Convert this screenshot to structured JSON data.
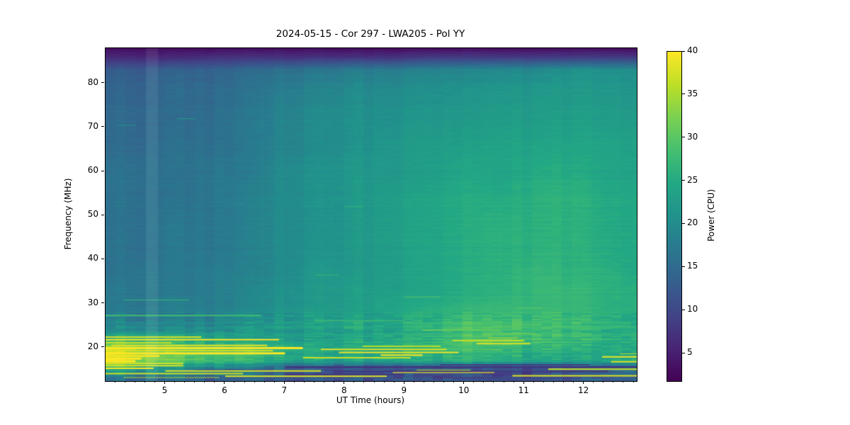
{
  "figure": {
    "title": "2024-05-15 - Cor 297 - LWA205 - Pol YY",
    "background": "#ffffff"
  },
  "axes": {
    "xlabel": "UT Time (hours)",
    "ylabel": "Frequency (MHz)",
    "x_major_ticks": [
      5,
      6,
      7,
      8,
      9,
      10,
      11,
      12
    ],
    "x_minor_per_major": 6,
    "y_major_ticks": [
      20,
      30,
      40,
      50,
      60,
      70,
      80
    ]
  },
  "colorbar": {
    "label": "Power (CPU)",
    "ticks": [
      5,
      10,
      15,
      20,
      25,
      30,
      35,
      40
    ],
    "vmin": 1.8,
    "vmax": 40
  },
  "chart_data": {
    "type": "heatmap",
    "title": "2024-05-15 - Cor 297 - LWA205 - Pol YY",
    "xlabel": "UT Time (hours)",
    "ylabel": "Frequency (MHz)",
    "value_label": "Power (CPU)",
    "x_range": [
      4.0,
      12.88
    ],
    "y_range": [
      12.4,
      88.0
    ],
    "value_range": [
      1.8,
      40
    ],
    "colormap": "viridis",
    "colormap_stops": [
      "#440154",
      "#482475",
      "#414487",
      "#355f8d",
      "#2a788e",
      "#21918c",
      "#22a884",
      "#44bf70",
      "#7ad151",
      "#bddf26",
      "#fde725"
    ],
    "grid": {
      "times": [
        4.0,
        4.6,
        5.2,
        5.8,
        6.4,
        7.0,
        7.6,
        8.2,
        8.8,
        9.4,
        10.0,
        10.6,
        11.2,
        11.8,
        12.4,
        12.88
      ],
      "freqs": [
        88,
        86,
        83,
        78,
        72,
        66,
        60,
        54,
        48,
        42,
        37,
        33,
        30,
        27,
        24.5,
        22,
        19.5,
        17,
        15.5,
        14,
        13
      ],
      "values": [
        [
          3,
          3,
          3,
          3,
          3,
          3,
          3,
          3,
          3,
          3,
          3,
          3,
          3,
          3,
          3,
          3
        ],
        [
          6,
          6,
          6,
          7,
          7,
          7,
          7,
          7,
          7,
          8,
          8,
          8,
          8,
          8,
          8,
          8
        ],
        [
          13,
          13,
          14,
          14,
          15,
          16,
          17,
          18,
          18,
          19,
          19,
          20,
          20,
          21,
          21,
          21
        ],
        [
          14,
          14,
          15,
          15,
          16,
          18,
          19,
          20,
          20,
          21,
          21,
          22,
          22,
          22,
          22,
          22
        ],
        [
          15,
          15,
          15,
          16,
          17,
          19,
          20,
          21,
          21,
          22,
          22,
          23,
          23,
          23,
          23,
          23
        ],
        [
          15,
          15,
          16,
          16,
          17,
          19,
          20,
          21,
          22,
          23,
          23,
          24,
          24,
          24,
          24,
          24
        ],
        [
          16,
          16,
          16,
          17,
          17,
          20,
          21,
          22,
          22,
          23,
          24,
          24,
          25,
          25,
          24,
          24
        ],
        [
          16,
          16,
          16,
          17,
          18,
          20,
          21,
          22,
          23,
          24,
          25,
          25,
          26,
          26,
          25,
          25
        ],
        [
          16,
          16,
          17,
          17,
          18,
          20,
          21,
          22,
          23,
          24,
          25,
          26,
          26,
          26,
          25,
          25
        ],
        [
          16,
          16,
          17,
          17,
          18,
          20,
          21,
          22,
          23,
          24,
          25,
          26,
          26,
          26,
          25,
          25
        ],
        [
          16,
          17,
          17,
          18,
          18,
          20,
          22,
          22,
          23,
          24,
          25,
          26,
          27,
          26,
          26,
          25
        ],
        [
          17,
          17,
          17,
          18,
          19,
          21,
          22,
          23,
          23,
          24,
          25,
          26,
          27,
          27,
          26,
          26
        ],
        [
          17,
          17,
          18,
          18,
          19,
          21,
          22,
          23,
          24,
          25,
          26,
          27,
          27,
          27,
          26,
          26
        ],
        [
          18,
          18,
          18,
          19,
          20,
          22,
          23,
          23,
          24,
          26,
          27,
          28,
          28,
          27,
          26,
          26
        ],
        [
          19,
          19,
          19,
          20,
          21,
          22,
          23,
          24,
          24,
          26,
          28,
          29,
          28,
          27,
          26,
          26
        ],
        [
          24,
          26,
          25,
          24,
          23,
          23,
          23,
          24,
          25,
          26,
          28,
          29,
          28,
          27,
          26,
          26
        ],
        [
          38,
          32,
          30,
          29,
          28,
          26,
          25,
          25,
          26,
          27,
          28,
          28,
          27,
          26,
          25,
          26
        ],
        [
          38,
          33,
          30,
          28,
          26,
          24,
          23,
          23,
          24,
          24,
          25,
          25,
          24,
          23,
          24,
          25
        ],
        [
          28,
          24,
          22,
          20,
          18,
          14,
          13,
          12,
          13,
          13,
          12,
          12,
          12,
          13,
          15,
          18
        ],
        [
          20,
          18,
          17,
          16,
          15,
          12,
          10,
          10,
          11,
          10,
          9,
          9,
          10,
          11,
          13,
          16
        ],
        [
          16,
          15,
          15,
          14,
          14,
          13,
          12,
          12,
          13,
          12,
          11,
          11,
          12,
          12,
          14,
          15
        ]
      ]
    },
    "streaks": [
      {
        "f": 27.3,
        "t0": 4.0,
        "t1": 6.6,
        "v": 28,
        "h": 2
      },
      {
        "f": 30.8,
        "t0": 4.3,
        "t1": 5.4,
        "v": 27,
        "h": 1
      },
      {
        "f": 22.4,
        "t0": 4.0,
        "t1": 5.6,
        "v": 38,
        "h": 2
      },
      {
        "f": 21.8,
        "t0": 4.0,
        "t1": 6.9,
        "v": 40,
        "h": 2
      },
      {
        "f": 21.1,
        "t0": 4.0,
        "t1": 5.1,
        "v": 37,
        "h": 2
      },
      {
        "f": 20.5,
        "t0": 4.1,
        "t1": 6.7,
        "v": 39,
        "h": 2
      },
      {
        "f": 19.9,
        "t0": 4.0,
        "t1": 7.3,
        "v": 40,
        "h": 3
      },
      {
        "f": 19.3,
        "t0": 4.0,
        "t1": 6.8,
        "v": 38,
        "h": 2
      },
      {
        "f": 18.7,
        "t0": 4.0,
        "t1": 7.0,
        "v": 40,
        "h": 3
      },
      {
        "f": 18.1,
        "t0": 4.0,
        "t1": 4.9,
        "v": 39,
        "h": 3
      },
      {
        "f": 17.5,
        "t0": 4.0,
        "t1": 4.6,
        "v": 40,
        "h": 3
      },
      {
        "f": 16.9,
        "t0": 4.0,
        "t1": 4.5,
        "v": 40,
        "h": 3
      },
      {
        "f": 16.4,
        "t0": 4.0,
        "t1": 5.3,
        "v": 38,
        "h": 2
      },
      {
        "f": 19.6,
        "t0": 7.6,
        "t1": 9.7,
        "v": 38,
        "h": 2
      },
      {
        "f": 18.9,
        "t0": 7.9,
        "t1": 9.9,
        "v": 39,
        "h": 2
      },
      {
        "f": 20.3,
        "t0": 8.3,
        "t1": 9.6,
        "v": 36,
        "h": 2
      },
      {
        "f": 17.7,
        "t0": 7.3,
        "t1": 9.1,
        "v": 37,
        "h": 2
      },
      {
        "f": 18.3,
        "t0": 8.6,
        "t1": 9.3,
        "v": 40,
        "h": 2
      },
      {
        "f": 21.6,
        "t0": 9.8,
        "t1": 11.0,
        "v": 37,
        "h": 2
      },
      {
        "f": 20.9,
        "t0": 10.2,
        "t1": 11.1,
        "v": 38,
        "h": 2
      },
      {
        "f": 22.2,
        "t0": 10.4,
        "t1": 10.9,
        "v": 35,
        "h": 1
      },
      {
        "f": 17.9,
        "t0": 12.3,
        "t1": 12.88,
        "v": 39,
        "h": 2
      },
      {
        "f": 16.8,
        "t0": 12.45,
        "t1": 12.88,
        "v": 38,
        "h": 2
      },
      {
        "f": 18.6,
        "t0": 12.6,
        "t1": 12.88,
        "v": 36,
        "h": 1
      },
      {
        "f": 15.9,
        "t0": 4.0,
        "t1": 5.3,
        "v": 38,
        "h": 2
      },
      {
        "f": 15.3,
        "t0": 4.0,
        "t1": 4.8,
        "v": 40,
        "h": 2
      },
      {
        "f": 14.7,
        "t0": 5.0,
        "t1": 7.6,
        "v": 38,
        "h": 2
      },
      {
        "f": 14.1,
        "t0": 4.0,
        "t1": 6.3,
        "v": 37,
        "h": 2
      },
      {
        "f": 13.5,
        "t0": 6.0,
        "t1": 8.7,
        "v": 38,
        "h": 2
      },
      {
        "f": 14.4,
        "t0": 8.8,
        "t1": 10.5,
        "v": 39,
        "h": 2
      },
      {
        "f": 13.6,
        "t0": 10.8,
        "t1": 12.88,
        "v": 38,
        "h": 2
      },
      {
        "f": 15.1,
        "t0": 11.4,
        "t1": 12.88,
        "v": 37,
        "h": 2
      },
      {
        "f": 14.9,
        "t0": 9.2,
        "t1": 10.1,
        "v": 36,
        "h": 1
      },
      {
        "f": 13.2,
        "t0": 4.3,
        "t1": 5.9,
        "v": 35,
        "h": 1
      },
      {
        "f": 15.6,
        "t0": 7.0,
        "t1": 12.88,
        "v": 7,
        "h": 2
      },
      {
        "f": 14.6,
        "t0": 7.8,
        "t1": 12.4,
        "v": 8,
        "h": 2
      },
      {
        "f": 16.1,
        "t0": 9.6,
        "t1": 12.1,
        "v": 9,
        "h": 2
      },
      {
        "f": 13.9,
        "t0": 7.0,
        "t1": 9.0,
        "v": 8,
        "h": 2
      },
      {
        "f": 15.0,
        "t0": 5.5,
        "t1": 6.8,
        "v": 10,
        "h": 1
      },
      {
        "f": 13.0,
        "t0": 9.8,
        "t1": 11.6,
        "v": 10,
        "h": 2
      },
      {
        "f": 26.1,
        "t0": 7.5,
        "t1": 9.0,
        "v": 29,
        "h": 1
      },
      {
        "f": 24.0,
        "t0": 9.3,
        "t1": 10.6,
        "v": 31,
        "h": 2
      },
      {
        "f": 25.2,
        "t0": 10.0,
        "t1": 11.3,
        "v": 30,
        "h": 1
      },
      {
        "f": 23.2,
        "t0": 10.6,
        "t1": 11.2,
        "v": 32,
        "h": 1
      },
      {
        "f": 31.5,
        "t0": 9.0,
        "t1": 9.6,
        "v": 30,
        "h": 1
      },
      {
        "f": 29.0,
        "t0": 10.9,
        "t1": 11.3,
        "v": 31,
        "h": 1
      },
      {
        "f": 70.5,
        "t0": 4.2,
        "t1": 4.5,
        "v": 22,
        "h": 1
      },
      {
        "f": 72.0,
        "t0": 5.2,
        "t1": 5.5,
        "v": 23,
        "h": 1
      },
      {
        "f": 52.0,
        "t0": 8.0,
        "t1": 8.3,
        "v": 27,
        "h": 1
      },
      {
        "f": 36.5,
        "t0": 7.5,
        "t1": 7.9,
        "v": 27,
        "h": 1
      }
    ],
    "vertical_bands": [
      {
        "t0": 4.68,
        "t1": 4.88,
        "alpha": 0.07
      }
    ],
    "texture": {
      "row_amp_top": 0.3,
      "row_amp_high": 0.5,
      "row_amp_low": 2.0,
      "row_amp_bottom": 2.6,
      "col_amp_high": 0.5,
      "col_amp_low": 1.3,
      "col_amp_bottom": 1.8,
      "split_freq": 28,
      "bottom_freq": 16.5,
      "top_freq": 84
    }
  }
}
